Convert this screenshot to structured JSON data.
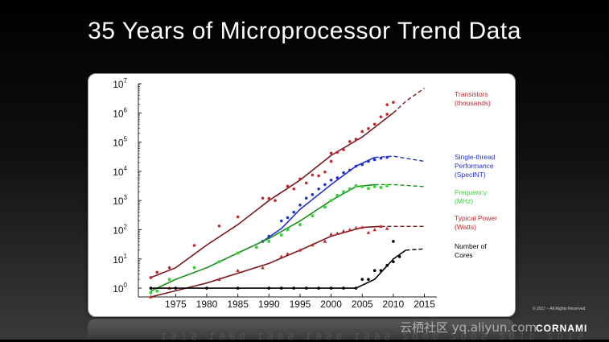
{
  "slide": {
    "title": "35 Years of Microprocessor Trend Data",
    "watermark": "云栖社区 yq.aliyun.com",
    "copyright": "© 2017 – All Rights Reserved",
    "brand": "CORNAMI",
    "reflection_text": "1975 1980 1985 1990 1995 2000 2005 2010 2015"
  },
  "chart_data": {
    "type": "scatter",
    "y_scale": "log",
    "ylim": [
      0.5,
      10000000
    ],
    "xlim": [
      1969,
      2017
    ],
    "x_ticks": [
      1975,
      1980,
      1985,
      1990,
      1995,
      2000,
      2005,
      2010,
      2015
    ],
    "x_tick_labels": [
      "1975",
      "1980",
      "1985",
      "1990",
      "1995",
      "2000",
      "2005",
      "2010",
      "2015"
    ],
    "y_ticks": [
      1,
      10,
      100,
      1000,
      10000,
      100000,
      1000000,
      10000000
    ],
    "y_tick_labels": [
      {
        "base": "10",
        "exp": "0"
      },
      {
        "base": "10",
        "exp": "1"
      },
      {
        "base": "10",
        "exp": "2"
      },
      {
        "base": "10",
        "exp": "3"
      },
      {
        "base": "10",
        "exp": "4"
      },
      {
        "base": "10",
        "exp": "5"
      },
      {
        "base": "10",
        "exp": "6"
      },
      {
        "base": "10",
        "exp": "7"
      }
    ],
    "grid": false,
    "legend_placement": "right",
    "series": [
      {
        "name": "Transistors (thousands)",
        "label_lines": [
          "Transistors",
          "(thousands)"
        ],
        "color": "#c0272d",
        "marker": "circle",
        "trend": [
          [
            1971,
            2.3
          ],
          [
            1975,
            5
          ],
          [
            1980,
            30
          ],
          [
            1985,
            150
          ],
          [
            1990,
            1000
          ],
          [
            1995,
            5000
          ],
          [
            2000,
            35000
          ],
          [
            2005,
            150000
          ],
          [
            2010,
            1000000
          ]
        ],
        "projection": [
          [
            2010,
            1000000
          ],
          [
            2012,
            2500000
          ],
          [
            2015,
            7000000
          ]
        ],
        "points": [
          [
            1971,
            2.3
          ],
          [
            1972,
            3.5
          ],
          [
            1974,
            5
          ],
          [
            1978,
            29
          ],
          [
            1982,
            134
          ],
          [
            1985,
            275
          ],
          [
            1989,
            1200
          ],
          [
            1990,
            1180
          ],
          [
            1991,
            1000
          ],
          [
            1993,
            3100
          ],
          [
            1994,
            2500
          ],
          [
            1995,
            5500
          ],
          [
            1996,
            4000
          ],
          [
            1997,
            7500
          ],
          [
            1998,
            7000
          ],
          [
            1999,
            9500
          ],
          [
            2000,
            42000
          ],
          [
            2000,
            22000
          ],
          [
            2001,
            45000
          ],
          [
            2002,
            55000
          ],
          [
            2003,
            105000
          ],
          [
            2004,
            125000
          ],
          [
            2005,
            230000
          ],
          [
            2006,
            291000
          ],
          [
            2007,
            410000
          ],
          [
            2008,
            731000
          ],
          [
            2009,
            900000
          ],
          [
            2010,
            2300000
          ],
          [
            2009,
            1900000
          ]
        ]
      },
      {
        "name": "Single-thread Performance (SpecINT)",
        "label_lines": [
          "Single-thread",
          "Performance",
          "(SpecINT)"
        ],
        "color": "#2230c8",
        "marker": "circle",
        "trend": [
          [
            1989,
            40
          ],
          [
            1992,
            110
          ],
          [
            1995,
            500
          ],
          [
            2000,
            3500
          ],
          [
            2004,
            15000
          ],
          [
            2007,
            30000
          ]
        ],
        "projection": [
          [
            2007,
            30000
          ],
          [
            2010,
            33000
          ],
          [
            2015,
            22000
          ]
        ],
        "points": [
          [
            1989,
            40
          ],
          [
            1990,
            60
          ],
          [
            1992,
            200
          ],
          [
            1993,
            260
          ],
          [
            1994,
            400
          ],
          [
            1995,
            700
          ],
          [
            1996,
            1200
          ],
          [
            1997,
            1600
          ],
          [
            1998,
            2500
          ],
          [
            1999,
            3500
          ],
          [
            2000,
            5000
          ],
          [
            2001,
            6000
          ],
          [
            2002,
            9000
          ],
          [
            2003,
            11000
          ],
          [
            2004,
            15000
          ],
          [
            2005,
            17000
          ],
          [
            2006,
            22000
          ],
          [
            2007,
            25000
          ],
          [
            2008,
            28000
          ],
          [
            2009,
            30000
          ]
        ]
      },
      {
        "name": "Frequency (MHz)",
        "label_lines": [
          "Frequency",
          "(MHz)"
        ],
        "color": "#39d23a",
        "marker": "square",
        "trend": [
          [
            1971,
            0.8
          ],
          [
            1975,
            2
          ],
          [
            1980,
            5
          ],
          [
            1985,
            16
          ],
          [
            1990,
            50
          ],
          [
            1995,
            200
          ],
          [
            2000,
            1000
          ],
          [
            2004,
            3000
          ],
          [
            2007,
            3500
          ]
        ],
        "projection": [
          [
            2007,
            3500
          ],
          [
            2010,
            3500
          ],
          [
            2015,
            3000
          ]
        ],
        "points": [
          [
            1971,
            0.7
          ],
          [
            1972,
            0.8
          ],
          [
            1974,
            2
          ],
          [
            1978,
            5
          ],
          [
            1982,
            8
          ],
          [
            1985,
            16
          ],
          [
            1988,
            25
          ],
          [
            1990,
            40
          ],
          [
            1992,
            66
          ],
          [
            1993,
            100
          ],
          [
            1995,
            150
          ],
          [
            1997,
            300
          ],
          [
            1999,
            600
          ],
          [
            2000,
            1000
          ],
          [
            2001,
            1500
          ],
          [
            2002,
            2000
          ],
          [
            2003,
            2500
          ],
          [
            2004,
            3200
          ],
          [
            2005,
            3000
          ],
          [
            2006,
            2600
          ],
          [
            2007,
            3000
          ],
          [
            2008,
            2800
          ],
          [
            2009,
            3200
          ]
        ]
      },
      {
        "name": "Typical Power (Watts)",
        "label_lines": [
          "Typical Power",
          "(Watts)"
        ],
        "color": "#c0272d",
        "marker": "triangle",
        "trend": [
          [
            1971,
            0.5
          ],
          [
            1980,
            1.5
          ],
          [
            1990,
            7
          ],
          [
            1995,
            20
          ],
          [
            2000,
            60
          ],
          [
            2005,
            120
          ],
          [
            2008,
            130
          ]
        ],
        "projection": [
          [
            2008,
            130
          ],
          [
            2011,
            130
          ],
          [
            2015,
            130
          ]
        ],
        "points": [
          [
            1971,
            0.5
          ],
          [
            1974,
            1
          ],
          [
            1982,
            2
          ],
          [
            1985,
            4
          ],
          [
            1989,
            5
          ],
          [
            1992,
            12
          ],
          [
            1993,
            15
          ],
          [
            1995,
            20
          ],
          [
            1997,
            30
          ],
          [
            1999,
            40
          ],
          [
            2000,
            70
          ],
          [
            2001,
            75
          ],
          [
            2002,
            90
          ],
          [
            2003,
            100
          ],
          [
            2004,
            115
          ],
          [
            2005,
            120
          ],
          [
            2006,
            80
          ],
          [
            2007,
            100
          ],
          [
            2008,
            130
          ],
          [
            2009,
            110
          ]
        ]
      },
      {
        "name": "Number of Cores",
        "label_lines": [
          "Number of",
          "Cores"
        ],
        "color": "#000000",
        "marker": "circle",
        "trend": [
          [
            1971,
            1
          ],
          [
            2004,
            1
          ],
          [
            2007,
            2
          ],
          [
            2010,
            10
          ],
          [
            2012,
            20
          ]
        ],
        "projection": [
          [
            2012,
            20
          ],
          [
            2015,
            22
          ]
        ],
        "points": [
          [
            1971,
            1
          ],
          [
            1975,
            1
          ],
          [
            1980,
            1
          ],
          [
            1985,
            1
          ],
          [
            1990,
            1
          ],
          [
            1992,
            1
          ],
          [
            1994,
            1
          ],
          [
            1996,
            1
          ],
          [
            1998,
            1
          ],
          [
            2000,
            1
          ],
          [
            2002,
            1
          ],
          [
            2004,
            1
          ],
          [
            2005,
            2
          ],
          [
            2006,
            2
          ],
          [
            2007,
            4
          ],
          [
            2008,
            4
          ],
          [
            2009,
            6
          ],
          [
            2010,
            8
          ],
          [
            2010,
            40
          ],
          [
            2011,
            12
          ]
        ]
      }
    ]
  }
}
